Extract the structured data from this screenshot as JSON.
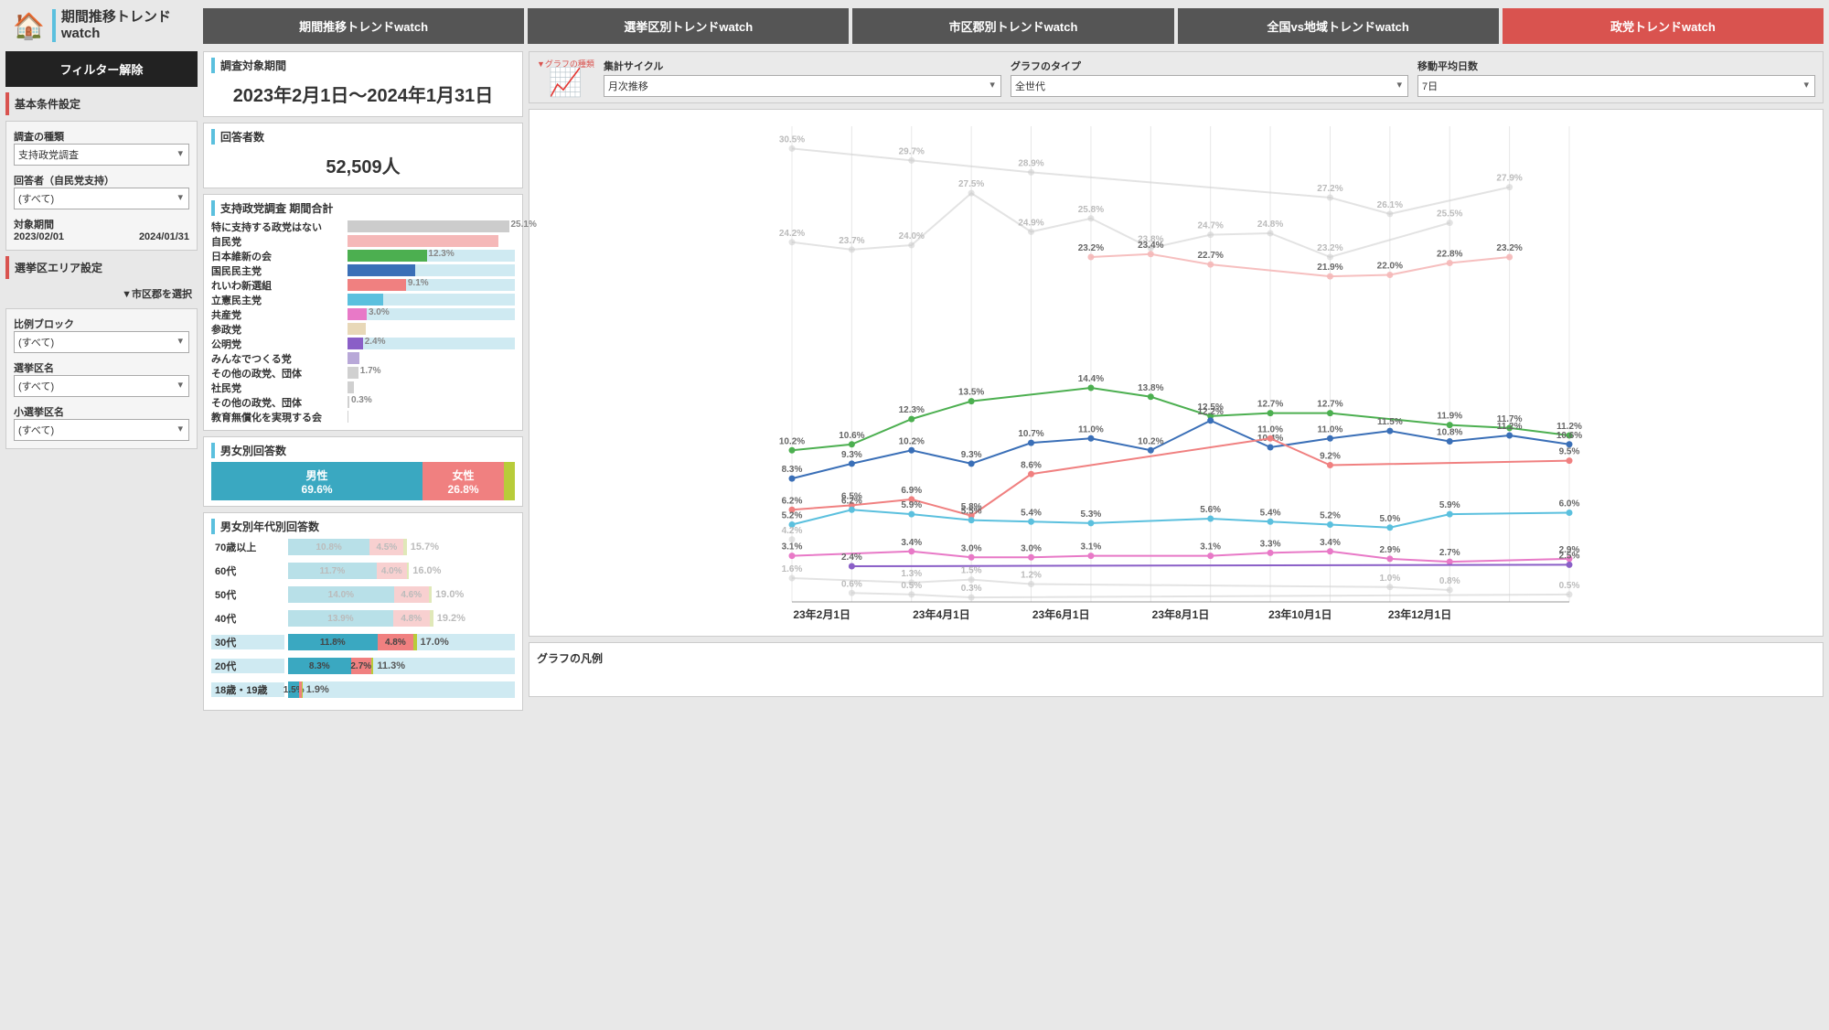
{
  "app_title": "期間推移トレンド\nwatch",
  "tabs": [
    {
      "label": "期間推移トレンドwatch",
      "active": false
    },
    {
      "label": "選挙区別トレンドwatch",
      "active": false
    },
    {
      "label": "市区郡別トレンドwatch",
      "active": false
    },
    {
      "label": "全国vs地域トレンドwatch",
      "active": false
    },
    {
      "label": "政党トレンドwatch",
      "active": true
    }
  ],
  "filter_clear_label": "フィルター解除",
  "basic_header": "基本条件設定",
  "survey_type": {
    "label": "調査の種類",
    "value": "支持政党調査"
  },
  "respondent_filter": {
    "label": "回答者（自民党支持）",
    "value": "(すべて)"
  },
  "period": {
    "label": "対象期間",
    "from": "2023/02/01",
    "to": "2024/01/31"
  },
  "area_header": "選挙区エリア設定",
  "area_note": "▼市区郡を選択",
  "area_selects": [
    {
      "label": "比例ブロック",
      "value": "(すべて)"
    },
    {
      "label": "選挙区名",
      "value": "(すべて)"
    },
    {
      "label": "小選挙区名",
      "value": "(すべて)"
    }
  ],
  "period_card": {
    "title": "調査対象期間",
    "value": "2023年2月1日～2024年1月31日"
  },
  "respondents_card": {
    "title": "回答者数",
    "value": "52,509人"
  },
  "party_totals": {
    "title": "支持政党調査 期間合計",
    "max_pct": 26,
    "rows": [
      {
        "label": "特に支持する政党はない",
        "pct": 25.1,
        "show": true,
        "color": "#cccccc",
        "hi": false
      },
      {
        "label": "自民党",
        "pct": 23.5,
        "show": false,
        "color": "#f5b8b8",
        "hi": false
      },
      {
        "label": "日本維新の会",
        "pct": 12.3,
        "show": true,
        "color": "#4caf50",
        "hi": true
      },
      {
        "label": "国民民主党",
        "pct": 10.5,
        "show": false,
        "color": "#3a6fb7",
        "hi": true
      },
      {
        "label": "れいわ新選組",
        "pct": 9.1,
        "show": true,
        "color": "#f08080",
        "hi": true
      },
      {
        "label": "立憲民主党",
        "pct": 5.5,
        "show": false,
        "color": "#5bc0de",
        "hi": true
      },
      {
        "label": "共産党",
        "pct": 3.0,
        "show": true,
        "color": "#e879c7",
        "hi": true
      },
      {
        "label": "参政党",
        "pct": 2.8,
        "show": false,
        "color": "#e8d8b8",
        "hi": false
      },
      {
        "label": "公明党",
        "pct": 2.4,
        "show": true,
        "color": "#8a5fc7",
        "hi": true
      },
      {
        "label": "みんなでつくる党",
        "pct": 1.9,
        "show": false,
        "color": "#b8a8d8",
        "hi": false
      },
      {
        "label": "その他の政党、団体",
        "pct": 1.7,
        "show": true,
        "color": "#d0d0d0",
        "hi": false
      },
      {
        "label": "社民党",
        "pct": 1.0,
        "show": false,
        "color": "#d0d0d0",
        "hi": false
      },
      {
        "label": "その他の政党、団体",
        "pct": 0.3,
        "show": true,
        "color": "#d0d0d0",
        "hi": false
      },
      {
        "label": "教育無償化を実現する会",
        "pct": 0.2,
        "show": false,
        "color": "#d0d0d0",
        "hi": false
      }
    ]
  },
  "gender": {
    "title": "男女別回答数",
    "segments": [
      {
        "label": "男性",
        "pct": 69.6,
        "color": "#3aa8c1"
      },
      {
        "label": "女性",
        "pct": 26.8,
        "color": "#f08080"
      },
      {
        "label": "",
        "pct": 3.6,
        "color": "#b8cc3a"
      }
    ]
  },
  "age": {
    "title": "男女別年代別回答数",
    "scale": 30,
    "rows": [
      {
        "label": "70歳以上",
        "m": 10.8,
        "f": 4.5,
        "o": 0.4,
        "total": 15.7,
        "faded": true,
        "hi": false
      },
      {
        "label": "60代",
        "m": 11.7,
        "f": 4.0,
        "o": 0.3,
        "total": 16.0,
        "faded": true,
        "hi": false
      },
      {
        "label": "50代",
        "m": 14.0,
        "f": 4.6,
        "o": 0.4,
        "total": 19.0,
        "faded": true,
        "hi": false
      },
      {
        "label": "40代",
        "m": 13.9,
        "f": 4.8,
        "o": 0.5,
        "total": 19.2,
        "faded": true,
        "hi": false
      },
      {
        "label": "30代",
        "m": 11.8,
        "f": 4.8,
        "o": 0.4,
        "total": 17.0,
        "faded": false,
        "hi": true
      },
      {
        "label": "20代",
        "m": 8.3,
        "f": 2.7,
        "o": 0.3,
        "total": 11.3,
        "faded": false,
        "hi": true
      },
      {
        "label": "18歳・19歳",
        "m": 1.5,
        "f": 0.3,
        "o": 0.1,
        "total": 1.9,
        "faded": false,
        "hi": true
      }
    ],
    "colors": {
      "m": "#3aa8c1",
      "f": "#f08080",
      "o": "#b8cc3a",
      "m_faded": "#b8e0e8",
      "f_faded": "#f8d0d0",
      "o_faded": "#e0e8b8"
    }
  },
  "controls": {
    "graph_type_label": "グラフの種類",
    "cycle": {
      "label": "集計サイクル",
      "value": "月次推移"
    },
    "type": {
      "label": "グラフのタイプ",
      "value": "全世代"
    },
    "ma": {
      "label": "移動平均日数",
      "value": "7日"
    }
  },
  "chart": {
    "x_labels": [
      "23年2月1日",
      "23年4月1日",
      "23年6月1日",
      "23年8月1日",
      "23年10月1日",
      "23年12月1日"
    ],
    "y_min": 0,
    "y_max": 32,
    "grid_color": "#e8e8e8",
    "series": [
      {
        "name": "none",
        "color": "#cccccc",
        "opacity": 0.55,
        "data": [
          30.5,
          null,
          29.7,
          null,
          28.9,
          null,
          null,
          null,
          null,
          27.2,
          26.1,
          null,
          27.9
        ]
      },
      {
        "name": "none2",
        "color": "#cccccc",
        "opacity": 0.55,
        "data": [
          24.2,
          23.7,
          24.0,
          27.5,
          24.9,
          25.8,
          23.8,
          24.7,
          24.8,
          23.2,
          null,
          25.5,
          null
        ]
      },
      {
        "name": "ldp",
        "color": "#f5b8b8",
        "opacity": 0.9,
        "data": [
          null,
          null,
          null,
          null,
          null,
          23.2,
          23.4,
          22.7,
          null,
          21.9,
          22.0,
          22.8,
          23.2
        ]
      },
      {
        "name": "ishin",
        "color": "#4caf50",
        "opacity": 1,
        "data": [
          10.2,
          10.6,
          12.3,
          13.5,
          null,
          14.4,
          13.8,
          12.5,
          12.7,
          12.7,
          null,
          11.9,
          11.7,
          11.2
        ]
      },
      {
        "name": "kokumin",
        "color": "#3a6fb7",
        "opacity": 1,
        "data": [
          8.3,
          9.3,
          10.2,
          9.3,
          10.7,
          11.0,
          10.2,
          12.2,
          10.4,
          11.0,
          11.5,
          10.8,
          11.2,
          10.6
        ]
      },
      {
        "name": "reiwa",
        "color": "#f08080",
        "opacity": 1,
        "data": [
          6.2,
          6.5,
          6.9,
          5.8,
          8.6,
          null,
          null,
          null,
          11.0,
          9.2,
          null,
          null,
          null,
          9.5
        ]
      },
      {
        "name": "cdp",
        "color": "#5bc0de",
        "opacity": 1,
        "data": [
          5.2,
          6.2,
          5.9,
          5.5,
          5.4,
          5.3,
          null,
          5.6,
          5.4,
          5.2,
          5.0,
          5.9,
          null,
          6.0
        ]
      },
      {
        "name": "jcp",
        "color": "#e879c7",
        "opacity": 1,
        "data": [
          3.1,
          null,
          3.4,
          3.0,
          3.0,
          3.1,
          null,
          3.1,
          3.3,
          3.4,
          2.9,
          2.7,
          null,
          2.9
        ]
      },
      {
        "name": "komei",
        "color": "#8a5fc7",
        "opacity": 1,
        "data": [
          null,
          2.4,
          null,
          null,
          null,
          null,
          null,
          null,
          null,
          null,
          null,
          null,
          null,
          2.5
        ]
      },
      {
        "name": "other1",
        "color": "#d0d0d0",
        "opacity": 0.6,
        "data": [
          4.2,
          null,
          null,
          null,
          null,
          null,
          null,
          null,
          null,
          null,
          null,
          null,
          null,
          null
        ]
      },
      {
        "name": "other2",
        "color": "#d0d0d0",
        "opacity": 0.6,
        "data": [
          1.6,
          null,
          1.3,
          1.5,
          1.2,
          null,
          null,
          null,
          null,
          null,
          1.0,
          0.8,
          null,
          null
        ]
      },
      {
        "name": "other3",
        "color": "#d0d0d0",
        "opacity": 0.6,
        "data": [
          null,
          0.6,
          0.5,
          0.3,
          null,
          null,
          null,
          null,
          null,
          null,
          null,
          null,
          null,
          0.5
        ]
      }
    ]
  },
  "legend_title": "グラフの凡例"
}
